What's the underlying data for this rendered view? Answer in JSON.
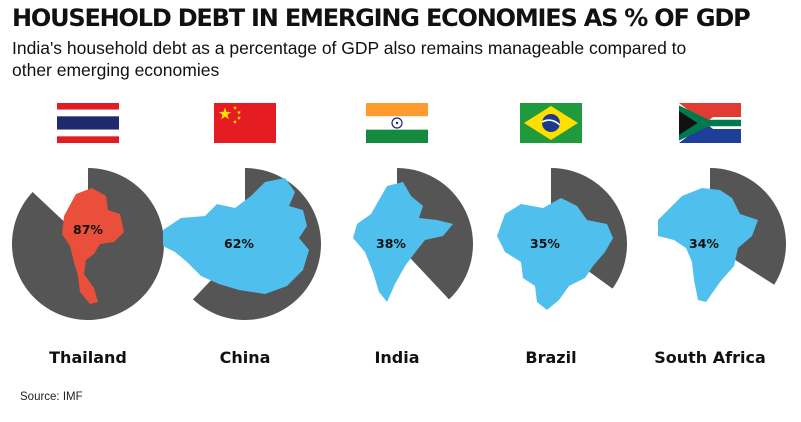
{
  "header": {
    "title": "HOUSEHOLD DEBT IN EMERGING ECONOMIES AS % OF GDP",
    "subtitle": "India's household debt as a percentage of GDP also remains manageable compared to other emerging economies"
  },
  "chart_data": {
    "type": "pie",
    "categories": [
      "Thailand",
      "China",
      "India",
      "Brazil",
      "South Africa"
    ],
    "values": [
      87,
      62,
      38,
      35,
      34
    ],
    "value_labels": [
      "87%",
      "62%",
      "38%",
      "35%",
      "34%"
    ],
    "unit": "% of GDP",
    "flags": [
      "thailand-flag",
      "china-flag",
      "india-flag",
      "brazil-flag",
      "south-africa-flag"
    ],
    "colors": {
      "slice": "#555555",
      "country": "#4fc0ee",
      "highlight": "#ea4f3c"
    },
    "highlight_category": "Thailand"
  },
  "footer": {
    "source": "Source: IMF"
  }
}
